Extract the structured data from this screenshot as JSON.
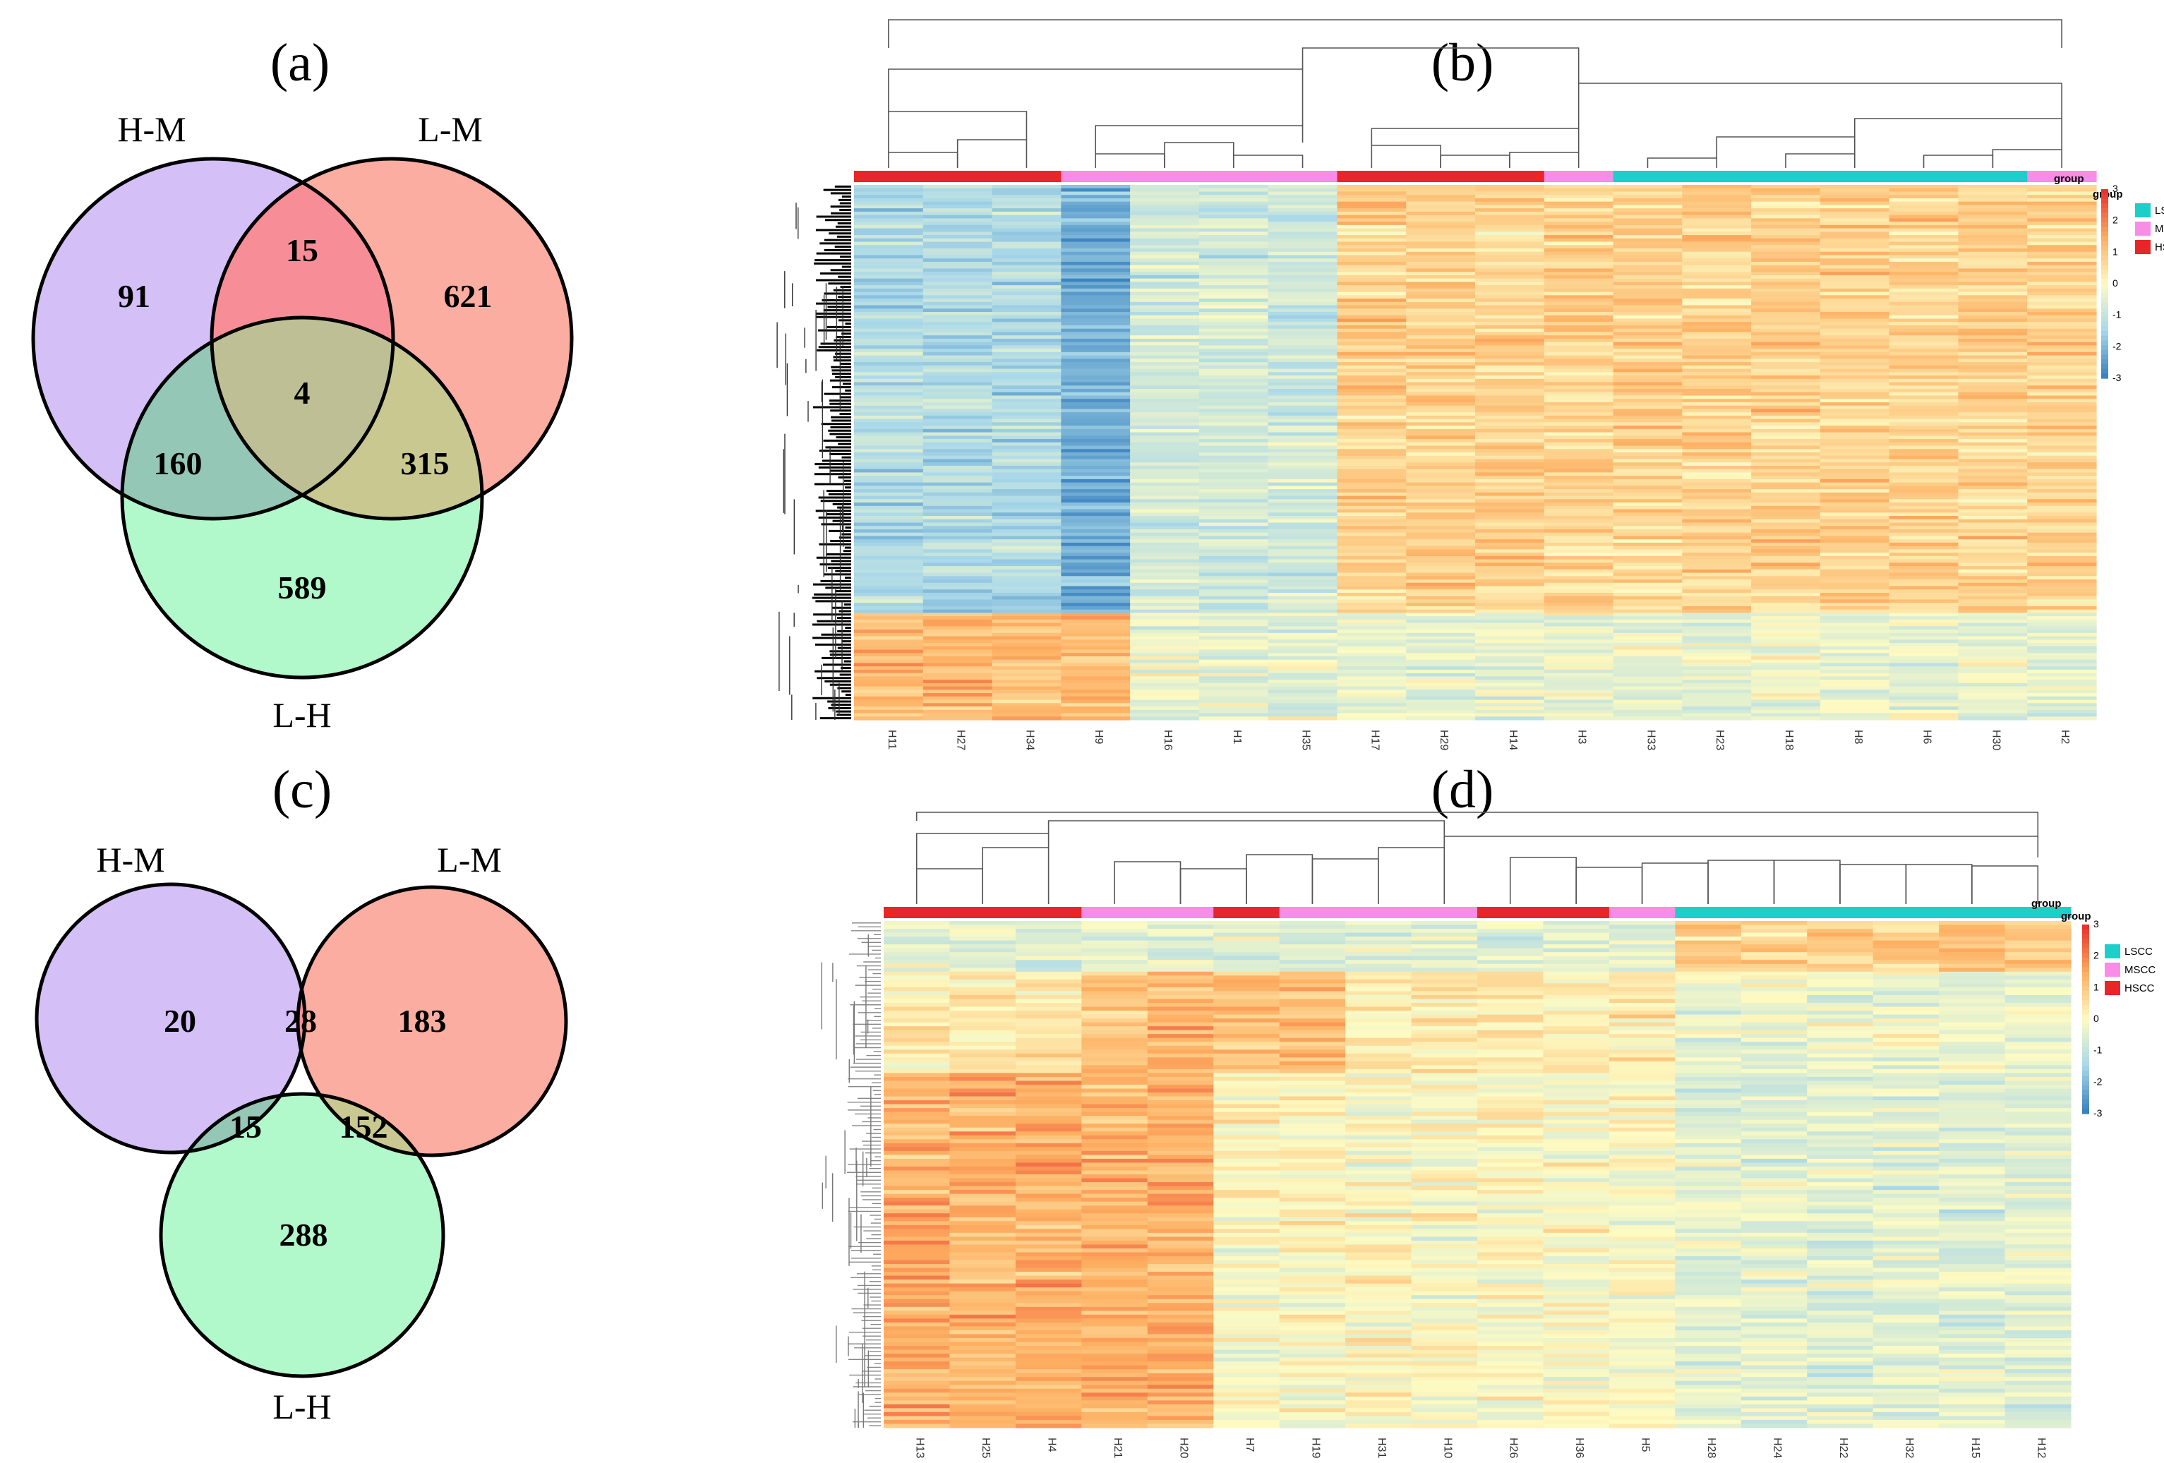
{
  "colors": {
    "hm": "#d4bff7",
    "lm": "#faada0",
    "lh": "#b1f8cb",
    "hm_lm": "#f78e97",
    "hm_lh": "#94c7b6",
    "lm_lh": "#c9c891",
    "all": "#bfbf95",
    "LSCC": "#1dcfc8",
    "MSCC": "#f98ce7",
    "HSCC": "#e8262a",
    "low": "#3a82bf",
    "mid": "#fdfbc3",
    "high": "#e8322c"
  },
  "chart_data": [
    {
      "type": "venn",
      "panel": "(a)",
      "sets": [
        "H-M",
        "L-M",
        "L-H"
      ],
      "regions": {
        "H-M only": 91,
        "L-M only": 621,
        "L-H only": 589,
        "H-M & L-M": 15,
        "H-M & L-H": 160,
        "L-M & L-H": 315,
        "H-M & L-M & L-H": 4
      }
    },
    {
      "type": "heatmap",
      "panel": "(b)",
      "samples": [
        "H11",
        "H27",
        "H34",
        "H9",
        "H16",
        "H1",
        "H35",
        "H17",
        "H29",
        "H14",
        "H3",
        "H33",
        "H23",
        "H18",
        "H8",
        "H6",
        "H30",
        "H2"
      ],
      "groups": [
        "HSCC",
        "HSCC",
        "HSCC",
        "MSCC",
        "MSCC",
        "MSCC",
        "MSCC",
        "HSCC",
        "HSCC",
        "HSCC",
        "MSCC",
        "LSCC",
        "LSCC",
        "LSCC",
        "LSCC",
        "LSCC",
        "LSCC",
        "MSCC"
      ],
      "color_range": [
        -3,
        3
      ],
      "scale_ticks": [
        3,
        2,
        1,
        0,
        -1,
        -2,
        -3
      ],
      "legend": {
        "title_outer": "group",
        "title_inner": "group",
        "items": [
          "LSCC",
          "MSCC",
          "HSCC"
        ]
      }
    },
    {
      "type": "venn",
      "panel": "(c)",
      "sets": [
        "H-M",
        "L-M",
        "L-H"
      ],
      "regions": {
        "H-M only": 20,
        "L-M only": 183,
        "L-H only": 288,
        "H-M & L-M": 28,
        "H-M & L-H": 15,
        "L-M & L-H": 152
      }
    },
    {
      "type": "heatmap",
      "panel": "(d)",
      "samples": [
        "H13",
        "H25",
        "H4",
        "H21",
        "H20",
        "H7",
        "H19",
        "H31",
        "H10",
        "H26",
        "H36",
        "H5",
        "H28",
        "H24",
        "H22",
        "H32",
        "H15",
        "H12"
      ],
      "groups": [
        "HSCC",
        "HSCC",
        "HSCC",
        "MSCC",
        "MSCC",
        "HSCC",
        "MSCC",
        "MSCC",
        "MSCC",
        "HSCC",
        "HSCC",
        "MSCC",
        "LSCC",
        "LSCC",
        "LSCC",
        "LSCC",
        "LSCC",
        "LSCC"
      ],
      "color_range": [
        -3,
        3
      ],
      "scale_ticks": [
        3,
        2,
        1,
        0,
        -1,
        -2,
        -3
      ],
      "legend": {
        "title_outer": "group",
        "title_inner": "group",
        "items": [
          "LSCC",
          "MSCC",
          "HSCC"
        ]
      }
    }
  ]
}
